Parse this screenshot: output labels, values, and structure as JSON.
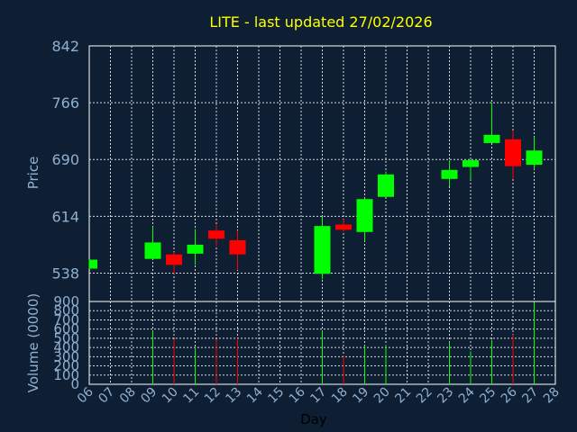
{
  "chart_data": {
    "type": "candlestick",
    "title": "LITE - last updated 27/02/2026",
    "xlabel": "Day",
    "ylabel_price": "Price",
    "ylabel_volume": "Volume (0000)",
    "day_labels": [
      "06",
      "07",
      "08",
      "09",
      "10",
      "11",
      "12",
      "13",
      "14",
      "15",
      "16",
      "17",
      "18",
      "19",
      "20",
      "21",
      "22",
      "23",
      "24",
      "25",
      "26",
      "27",
      "28"
    ],
    "price_axis": {
      "min": 500,
      "max": 842,
      "ticks": [
        538,
        614,
        690,
        766,
        842
      ]
    },
    "volume_axis": {
      "min": 0,
      "max": 900,
      "ticks": [
        0,
        100,
        200,
        300,
        400,
        500,
        600,
        700,
        800,
        900
      ]
    },
    "grid": true,
    "colors": {
      "up": "#00ff00",
      "down": "#ff0000",
      "title": "#ffff00",
      "axis_text": "#8fb0d0",
      "background": "#0f1f33"
    },
    "candles": [
      {
        "day": "06",
        "open": 544,
        "high": 556,
        "low": 544,
        "close": 556,
        "volume": 0
      },
      {
        "day": "09",
        "open": 557,
        "high": 600,
        "low": 557,
        "close": 579,
        "volume": 590
      },
      {
        "day": "10",
        "open": 563,
        "high": 566,
        "low": 537,
        "close": 549,
        "volume": 490
      },
      {
        "day": "11",
        "open": 564,
        "high": 597,
        "low": 549,
        "close": 576,
        "volume": 400
      },
      {
        "day": "12",
        "open": 595,
        "high": 603,
        "low": 574,
        "close": 584,
        "volume": 490
      },
      {
        "day": "13",
        "open": 582,
        "high": 595,
        "low": 542,
        "close": 563,
        "volume": 500
      },
      {
        "day": "17",
        "open": 537,
        "high": 614,
        "low": 530,
        "close": 601,
        "volume": 590
      },
      {
        "day": "18",
        "open": 603,
        "high": 610,
        "low": 593,
        "close": 596,
        "volume": 310
      },
      {
        "day": "19",
        "open": 593,
        "high": 638,
        "low": 581,
        "close": 637,
        "volume": 420
      },
      {
        "day": "20",
        "open": 640,
        "high": 674,
        "low": 640,
        "close": 670,
        "volume": 430
      },
      {
        "day": "23",
        "open": 664,
        "high": 689,
        "low": 654,
        "close": 676,
        "volume": 460
      },
      {
        "day": "24",
        "open": 680,
        "high": 691,
        "low": 663,
        "close": 689,
        "volume": 360
      },
      {
        "day": "25",
        "open": 712,
        "high": 766,
        "low": 712,
        "close": 723,
        "volume": 480
      },
      {
        "day": "26",
        "open": 717,
        "high": 729,
        "low": 664,
        "close": 681,
        "volume": 540
      },
      {
        "day": "27",
        "open": 683,
        "high": 720,
        "low": 677,
        "close": 702,
        "volume": 890
      }
    ]
  }
}
